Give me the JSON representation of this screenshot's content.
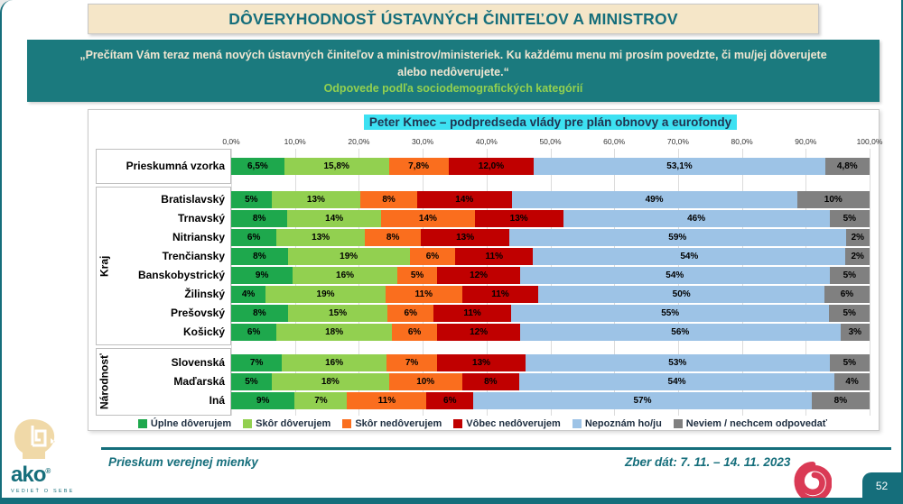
{
  "slide": {
    "title": "DÔVERYHODNOSŤ ÚSTAVNÝCH ČINITEĽOV A MINISTROV",
    "quote_text": "„Prečítam Vám teraz mená nových ústavných činiteľov a ministrov/ministeriek. Ku každému menu mi prosím povedzte, či mu/jej dôverujete alebo nedôverujete.“",
    "quote_subtitle": "Odpovede podľa sociodemografických kategórií",
    "footer_left": "Prieskum verejnej mienky",
    "footer_right": "Zber dát: 7. 11. – 14. 11. 2023",
    "page_number": "52",
    "logo_word": "ako",
    "logo_tagline": "VEDIEŤ O SEBE"
  },
  "colors": {
    "teal": "#156E7B",
    "quote_bg": "#1B7A7E",
    "title_bg": "#F5E6C8",
    "highlight_cyan": "#3DE1F2",
    "green_accent": "#92D050",
    "logo_red": "#DA3A55",
    "logo_beige": "#F0D9A8"
  },
  "chart_data": {
    "type": "bar",
    "stacked": true,
    "orientation": "horizontal",
    "title": "Peter Kmec – podpredseda vlády pre plán obnovy a eurofondy",
    "xlim": [
      0,
      100
    ],
    "grid": true,
    "legend_position": "bottom",
    "x_ticks": [
      "0,0%",
      "10,0%",
      "20,0%",
      "30,0%",
      "40,0%",
      "50,0%",
      "60,0%",
      "70,0%",
      "80,0%",
      "90,0%",
      "100,0%"
    ],
    "series_names": [
      "Úplne dôverujem",
      "Skôr dôverujem",
      "Skôr nedôverujem",
      "Vôbec nedôverujem",
      "Nepoznám ho/ju",
      "Neviem / nechcem odpovedať"
    ],
    "colors": [
      "#1EA84D",
      "#92D050",
      "#FA6E1E",
      "#C00000",
      "#9DC3E6",
      "#808080"
    ],
    "groups": [
      {
        "label": "",
        "rows": [
          {
            "label": "Prieskumná vzorka",
            "values": [
              6.5,
              15.8,
              7.8,
              12.0,
              53.1,
              4.8
            ],
            "display": [
              "6,5%",
              "15,8%",
              "7,8%",
              "12,0%",
              "53,1%",
              "4,8%"
            ]
          }
        ]
      },
      {
        "label": "Kraj",
        "rows": [
          {
            "label": "Bratislavský",
            "values": [
              5,
              13,
              8,
              14,
              49,
              10
            ],
            "display": [
              "5%",
              "13%",
              "8%",
              "14%",
              "49%",
              "10%"
            ]
          },
          {
            "label": "Trnavský",
            "values": [
              8,
              14,
              14,
              13,
              46,
              5
            ],
            "display": [
              "8%",
              "14%",
              "14%",
              "13%",
              "46%",
              "5%"
            ]
          },
          {
            "label": "Nitriansky",
            "values": [
              6,
              13,
              8,
              13,
              59,
              2
            ],
            "display": [
              "6%",
              "13%",
              "8%",
              "13%",
              "59%",
              "2%"
            ]
          },
          {
            "label": "Trenčiansky",
            "values": [
              8,
              19,
              6,
              11,
              54,
              2
            ],
            "display": [
              "8%",
              "19%",
              "6%",
              "11%",
              "54%",
              "2%"
            ]
          },
          {
            "label": "Banskobystrický",
            "values": [
              9,
              16,
              5,
              12,
              54,
              5
            ],
            "display": [
              "9%",
              "16%",
              "5%",
              "12%",
              "54%",
              "5%"
            ]
          },
          {
            "label": "Žilinský",
            "values": [
              4,
              19,
              11,
              11,
              50,
              6
            ],
            "display": [
              "4%",
              "19%",
              "11%",
              "11%",
              "50%",
              "6%"
            ]
          },
          {
            "label": "Prešovský",
            "values": [
              8,
              15,
              6,
              11,
              55,
              5
            ],
            "display": [
              "8%",
              "15%",
              "6%",
              "11%",
              "55%",
              "5%"
            ]
          },
          {
            "label": "Košický",
            "values": [
              6,
              18,
              6,
              12,
              56,
              3
            ],
            "display": [
              "6%",
              "18%",
              "6%",
              "12%",
              "56%",
              "3%"
            ]
          }
        ]
      },
      {
        "label": "Národnosť",
        "rows": [
          {
            "label": "Slovenská",
            "values": [
              7,
              16,
              7,
              13,
              53,
              5
            ],
            "display": [
              "7%",
              "16%",
              "7%",
              "13%",
              "53%",
              "5%"
            ]
          },
          {
            "label": "Maďarská",
            "values": [
              5,
              18,
              10,
              8,
              54,
              4
            ],
            "display": [
              "5%",
              "18%",
              "10%",
              "8%",
              "54%",
              "4%"
            ]
          },
          {
            "label": "Iná",
            "values": [
              9,
              7,
              11,
              6,
              57,
              8
            ],
            "display": [
              "9%",
              "7%",
              "11%",
              "6%",
              "57%",
              "8%"
            ]
          }
        ]
      }
    ]
  }
}
